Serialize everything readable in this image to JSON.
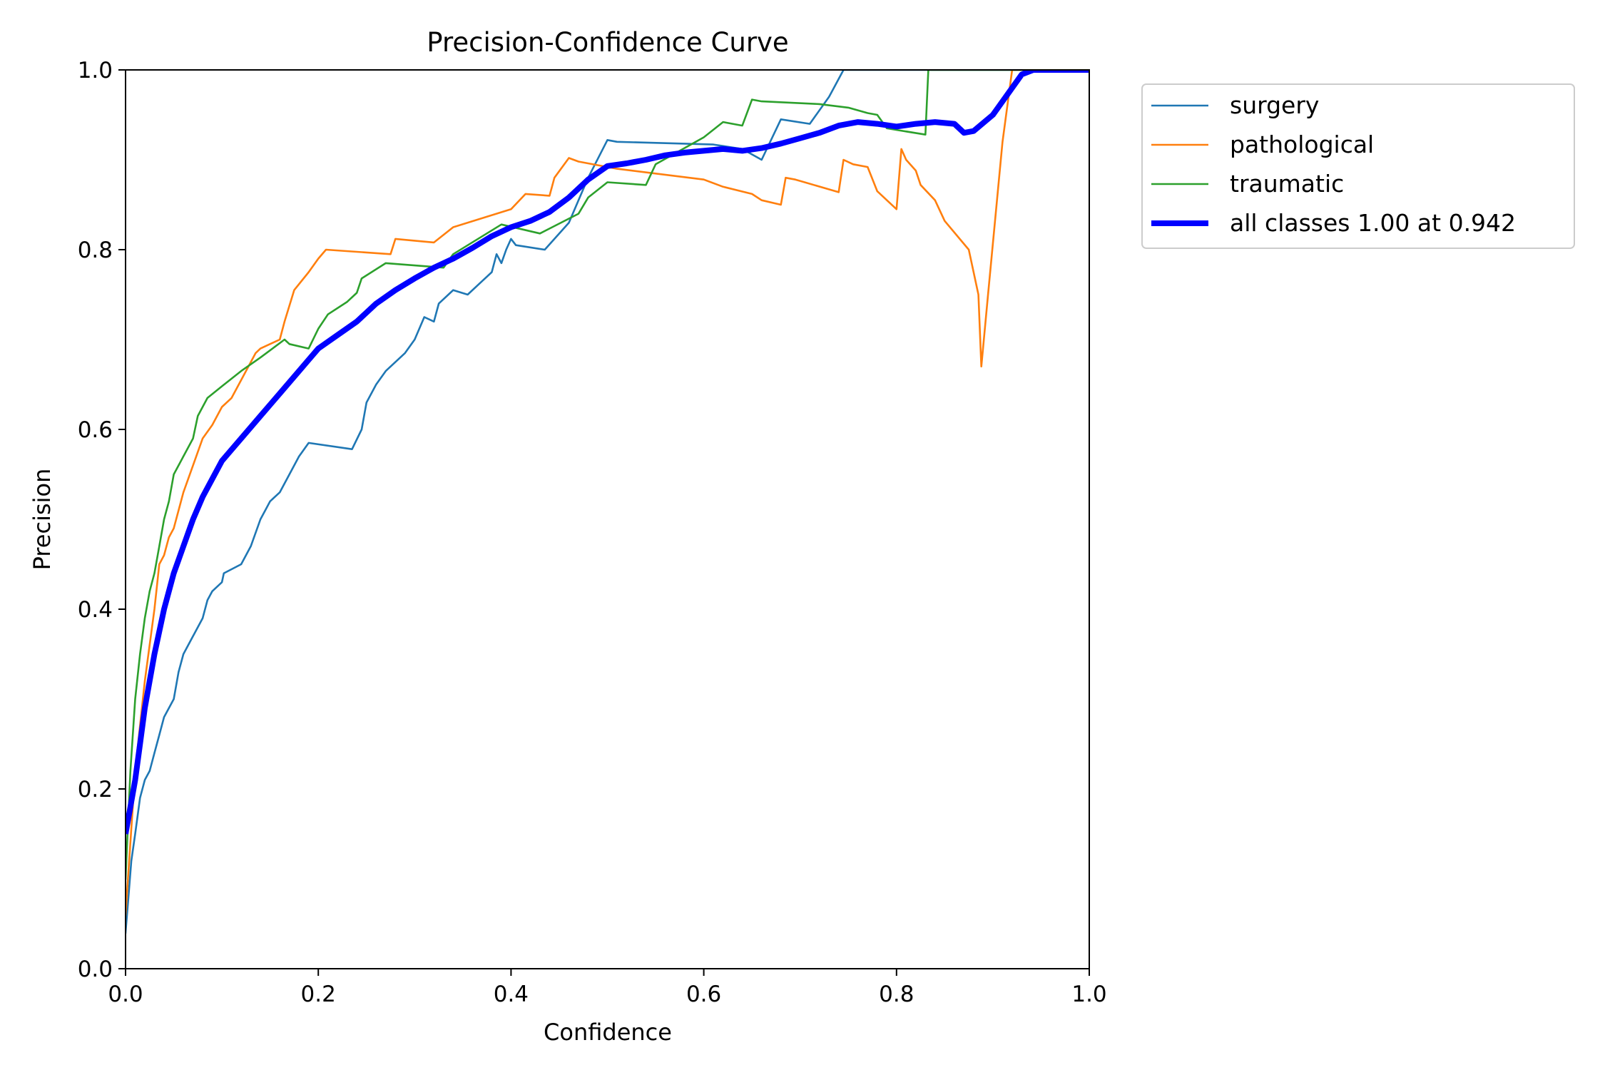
{
  "chart_data": {
    "type": "line",
    "title": "Precision-Confidence Curve",
    "xlabel": "Confidence",
    "ylabel": "Precision",
    "xlim": [
      0,
      1
    ],
    "ylim": [
      0,
      1
    ],
    "xticks": [
      "0.0",
      "0.2",
      "0.4",
      "0.6",
      "0.8",
      "1.0"
    ],
    "yticks": [
      "0.0",
      "0.2",
      "0.4",
      "0.6",
      "0.8",
      "1.0"
    ],
    "grid": false,
    "legend_position": "outside-upper-right",
    "series": [
      {
        "name": "surgery",
        "color": "#1f77b4",
        "points": [
          [
            0.0,
            0.04
          ],
          [
            0.003,
            0.08
          ],
          [
            0.006,
            0.12
          ],
          [
            0.01,
            0.15
          ],
          [
            0.015,
            0.19
          ],
          [
            0.02,
            0.21
          ],
          [
            0.025,
            0.22
          ],
          [
            0.03,
            0.24
          ],
          [
            0.035,
            0.26
          ],
          [
            0.04,
            0.28
          ],
          [
            0.05,
            0.3
          ],
          [
            0.055,
            0.33
          ],
          [
            0.06,
            0.35
          ],
          [
            0.07,
            0.37
          ],
          [
            0.08,
            0.39
          ],
          [
            0.085,
            0.41
          ],
          [
            0.09,
            0.42
          ],
          [
            0.1,
            0.43
          ],
          [
            0.102,
            0.44
          ],
          [
            0.12,
            0.45
          ],
          [
            0.13,
            0.47
          ],
          [
            0.14,
            0.5
          ],
          [
            0.145,
            0.51
          ],
          [
            0.15,
            0.52
          ],
          [
            0.16,
            0.53
          ],
          [
            0.17,
            0.55
          ],
          [
            0.18,
            0.57
          ],
          [
            0.19,
            0.585
          ],
          [
            0.235,
            0.578
          ],
          [
            0.245,
            0.6
          ],
          [
            0.25,
            0.63
          ],
          [
            0.26,
            0.65
          ],
          [
            0.27,
            0.665
          ],
          [
            0.29,
            0.685
          ],
          [
            0.3,
            0.7
          ],
          [
            0.31,
            0.725
          ],
          [
            0.32,
            0.72
          ],
          [
            0.325,
            0.74
          ],
          [
            0.34,
            0.755
          ],
          [
            0.355,
            0.75
          ],
          [
            0.37,
            0.765
          ],
          [
            0.38,
            0.775
          ],
          [
            0.385,
            0.795
          ],
          [
            0.39,
            0.785
          ],
          [
            0.395,
            0.8
          ],
          [
            0.4,
            0.812
          ],
          [
            0.405,
            0.805
          ],
          [
            0.435,
            0.8
          ],
          [
            0.46,
            0.83
          ],
          [
            0.48,
            0.88
          ],
          [
            0.5,
            0.922
          ],
          [
            0.51,
            0.92
          ],
          [
            0.61,
            0.917
          ],
          [
            0.64,
            0.912
          ],
          [
            0.66,
            0.9
          ],
          [
            0.68,
            0.945
          ],
          [
            0.71,
            0.94
          ],
          [
            0.73,
            0.97
          ],
          [
            0.745,
            1.0
          ],
          [
            1.0,
            1.0
          ]
        ]
      },
      {
        "name": "pathological",
        "color": "#ff7f0e",
        "points": [
          [
            0.0,
            0.06
          ],
          [
            0.01,
            0.22
          ],
          [
            0.02,
            0.32
          ],
          [
            0.03,
            0.4
          ],
          [
            0.035,
            0.45
          ],
          [
            0.04,
            0.46
          ],
          [
            0.045,
            0.48
          ],
          [
            0.05,
            0.49
          ],
          [
            0.06,
            0.53
          ],
          [
            0.07,
            0.56
          ],
          [
            0.08,
            0.59
          ],
          [
            0.09,
            0.605
          ],
          [
            0.1,
            0.625
          ],
          [
            0.11,
            0.635
          ],
          [
            0.12,
            0.655
          ],
          [
            0.135,
            0.685
          ],
          [
            0.14,
            0.69
          ],
          [
            0.16,
            0.7
          ],
          [
            0.165,
            0.72
          ],
          [
            0.175,
            0.755
          ],
          [
            0.19,
            0.775
          ],
          [
            0.2,
            0.79
          ],
          [
            0.208,
            0.8
          ],
          [
            0.275,
            0.795
          ],
          [
            0.28,
            0.812
          ],
          [
            0.32,
            0.808
          ],
          [
            0.34,
            0.825
          ],
          [
            0.4,
            0.845
          ],
          [
            0.415,
            0.862
          ],
          [
            0.44,
            0.86
          ],
          [
            0.445,
            0.88
          ],
          [
            0.46,
            0.902
          ],
          [
            0.47,
            0.898
          ],
          [
            0.51,
            0.89
          ],
          [
            0.6,
            0.878
          ],
          [
            0.62,
            0.87
          ],
          [
            0.65,
            0.862
          ],
          [
            0.66,
            0.855
          ],
          [
            0.68,
            0.85
          ],
          [
            0.685,
            0.88
          ],
          [
            0.695,
            0.878
          ],
          [
            0.74,
            0.864
          ],
          [
            0.745,
            0.9
          ],
          [
            0.755,
            0.895
          ],
          [
            0.77,
            0.892
          ],
          [
            0.78,
            0.865
          ],
          [
            0.8,
            0.845
          ],
          [
            0.805,
            0.912
          ],
          [
            0.81,
            0.9
          ],
          [
            0.82,
            0.888
          ],
          [
            0.825,
            0.872
          ],
          [
            0.84,
            0.855
          ],
          [
            0.85,
            0.832
          ],
          [
            0.875,
            0.8
          ],
          [
            0.885,
            0.75
          ],
          [
            0.888,
            0.67
          ],
          [
            0.895,
            0.75
          ],
          [
            0.91,
            0.92
          ],
          [
            0.92,
            1.0
          ],
          [
            1.0,
            1.0
          ]
        ]
      },
      {
        "name": "traumatic",
        "color": "#2ca02c",
        "points": [
          [
            0.0,
            0.1
          ],
          [
            0.005,
            0.22
          ],
          [
            0.01,
            0.3
          ],
          [
            0.015,
            0.35
          ],
          [
            0.02,
            0.39
          ],
          [
            0.025,
            0.42
          ],
          [
            0.03,
            0.44
          ],
          [
            0.035,
            0.47
          ],
          [
            0.04,
            0.5
          ],
          [
            0.045,
            0.52
          ],
          [
            0.05,
            0.55
          ],
          [
            0.06,
            0.57
          ],
          [
            0.07,
            0.59
          ],
          [
            0.075,
            0.615
          ],
          [
            0.085,
            0.635
          ],
          [
            0.1,
            0.648
          ],
          [
            0.12,
            0.665
          ],
          [
            0.14,
            0.68
          ],
          [
            0.155,
            0.692
          ],
          [
            0.165,
            0.7
          ],
          [
            0.17,
            0.695
          ],
          [
            0.19,
            0.69
          ],
          [
            0.2,
            0.712
          ],
          [
            0.21,
            0.728
          ],
          [
            0.23,
            0.742
          ],
          [
            0.24,
            0.752
          ],
          [
            0.245,
            0.768
          ],
          [
            0.27,
            0.785
          ],
          [
            0.33,
            0.78
          ],
          [
            0.34,
            0.795
          ],
          [
            0.39,
            0.828
          ],
          [
            0.43,
            0.818
          ],
          [
            0.47,
            0.84
          ],
          [
            0.48,
            0.858
          ],
          [
            0.5,
            0.875
          ],
          [
            0.54,
            0.872
          ],
          [
            0.55,
            0.895
          ],
          [
            0.6,
            0.925
          ],
          [
            0.62,
            0.942
          ],
          [
            0.64,
            0.938
          ],
          [
            0.65,
            0.967
          ],
          [
            0.66,
            0.965
          ],
          [
            0.72,
            0.962
          ],
          [
            0.75,
            0.958
          ],
          [
            0.77,
            0.952
          ],
          [
            0.78,
            0.95
          ],
          [
            0.79,
            0.935
          ],
          [
            0.83,
            0.928
          ],
          [
            0.833,
            1.0
          ],
          [
            1.0,
            1.0
          ]
        ]
      },
      {
        "name": "all classes 1.00 at 0.942",
        "color": "#0000ff",
        "points": [
          [
            0.0,
            0.15
          ],
          [
            0.005,
            0.18
          ],
          [
            0.01,
            0.21
          ],
          [
            0.015,
            0.25
          ],
          [
            0.02,
            0.29
          ],
          [
            0.03,
            0.35
          ],
          [
            0.04,
            0.4
          ],
          [
            0.05,
            0.44
          ],
          [
            0.06,
            0.47
          ],
          [
            0.07,
            0.5
          ],
          [
            0.08,
            0.525
          ],
          [
            0.09,
            0.545
          ],
          [
            0.1,
            0.565
          ],
          [
            0.12,
            0.59
          ],
          [
            0.14,
            0.615
          ],
          [
            0.16,
            0.64
          ],
          [
            0.18,
            0.665
          ],
          [
            0.2,
            0.69
          ],
          [
            0.22,
            0.705
          ],
          [
            0.24,
            0.72
          ],
          [
            0.26,
            0.74
          ],
          [
            0.28,
            0.755
          ],
          [
            0.3,
            0.768
          ],
          [
            0.32,
            0.78
          ],
          [
            0.34,
            0.79
          ],
          [
            0.36,
            0.802
          ],
          [
            0.38,
            0.815
          ],
          [
            0.4,
            0.825
          ],
          [
            0.42,
            0.832
          ],
          [
            0.44,
            0.842
          ],
          [
            0.46,
            0.858
          ],
          [
            0.48,
            0.878
          ],
          [
            0.5,
            0.893
          ],
          [
            0.52,
            0.896
          ],
          [
            0.54,
            0.9
          ],
          [
            0.56,
            0.905
          ],
          [
            0.58,
            0.908
          ],
          [
            0.6,
            0.91
          ],
          [
            0.62,
            0.912
          ],
          [
            0.64,
            0.91
          ],
          [
            0.66,
            0.913
          ],
          [
            0.68,
            0.918
          ],
          [
            0.7,
            0.924
          ],
          [
            0.72,
            0.93
          ],
          [
            0.74,
            0.938
          ],
          [
            0.76,
            0.942
          ],
          [
            0.78,
            0.94
          ],
          [
            0.8,
            0.937
          ],
          [
            0.82,
            0.94
          ],
          [
            0.84,
            0.942
          ],
          [
            0.86,
            0.94
          ],
          [
            0.87,
            0.93
          ],
          [
            0.88,
            0.932
          ],
          [
            0.9,
            0.95
          ],
          [
            0.92,
            0.98
          ],
          [
            0.93,
            0.995
          ],
          [
            0.942,
            1.0
          ],
          [
            1.0,
            1.0
          ]
        ]
      }
    ]
  }
}
